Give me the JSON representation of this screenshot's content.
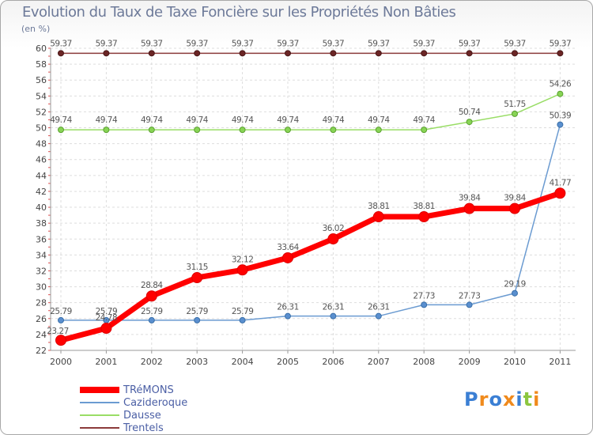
{
  "title": "Evolution du Taux de Taxe Foncière sur les Propriétés Non Bâties",
  "unit_label": "(en %)",
  "logo_text": "Proxiti",
  "chart_data": {
    "type": "line",
    "title": "Evolution du Taux de Taxe Foncière sur les Propriétés Non Bâties",
    "ylabel": "(en %)",
    "xlabel": "",
    "x": [
      "2000",
      "2001",
      "2002",
      "2003",
      "2004",
      "2005",
      "2006",
      "2007",
      "2008",
      "2009",
      "2010",
      "2011"
    ],
    "ylim": [
      22,
      60
    ],
    "yticks": [
      "22",
      "24",
      "26",
      "28",
      "30",
      "32",
      "34",
      "36",
      "38",
      "40",
      "42",
      "44",
      "46",
      "48",
      "50",
      "52",
      "54",
      "56",
      "58",
      "60"
    ],
    "grid": true,
    "legend_position": "bottom-left",
    "series": [
      {
        "name": "TRéMONS",
        "color": "#ff0000",
        "values": [
          23.27,
          24.78,
          28.84,
          31.15,
          32.12,
          33.64,
          36.02,
          38.81,
          38.81,
          39.84,
          39.84,
          41.77
        ],
        "labels": [
          "23.27",
          "24.78",
          "28.84",
          "31.15",
          "32.12",
          "33.64",
          "36.02",
          "38.81",
          "38.81",
          "39.84",
          "39.84",
          "41.77"
        ]
      },
      {
        "name": "Cazideroque",
        "color": "#6b9bd1",
        "values": [
          25.79,
          25.79,
          25.79,
          25.79,
          25.79,
          26.31,
          26.31,
          26.31,
          27.73,
          27.73,
          29.19,
          50.39
        ],
        "labels": [
          "25.79",
          "25.79",
          "25.79",
          "25.79",
          "25.79",
          "26.31",
          "26.31",
          "26.31",
          "27.73",
          "27.73",
          "29.19",
          "50.39"
        ]
      },
      {
        "name": "Dausse",
        "color": "#99dd66",
        "values": [
          49.74,
          49.74,
          49.74,
          49.74,
          49.74,
          49.74,
          49.74,
          49.74,
          49.74,
          50.74,
          51.75,
          54.26
        ],
        "labels": [
          "49.74",
          "49.74",
          "49.74",
          "49.74",
          "49.74",
          "49.74",
          "49.74",
          "49.74",
          "49.74",
          "50.74",
          "51.75",
          "54.26"
        ]
      },
      {
        "name": "Trentels",
        "color": "#8b3a3a",
        "values": [
          59.37,
          59.37,
          59.37,
          59.37,
          59.37,
          59.37,
          59.37,
          59.37,
          59.37,
          59.37,
          59.37,
          59.37
        ],
        "labels": [
          "59.37",
          "59.37",
          "59.37",
          "59.37",
          "59.37",
          "59.37",
          "59.37",
          "59.37",
          "59.37",
          "59.37",
          "59.37",
          "59.37"
        ]
      }
    ]
  }
}
